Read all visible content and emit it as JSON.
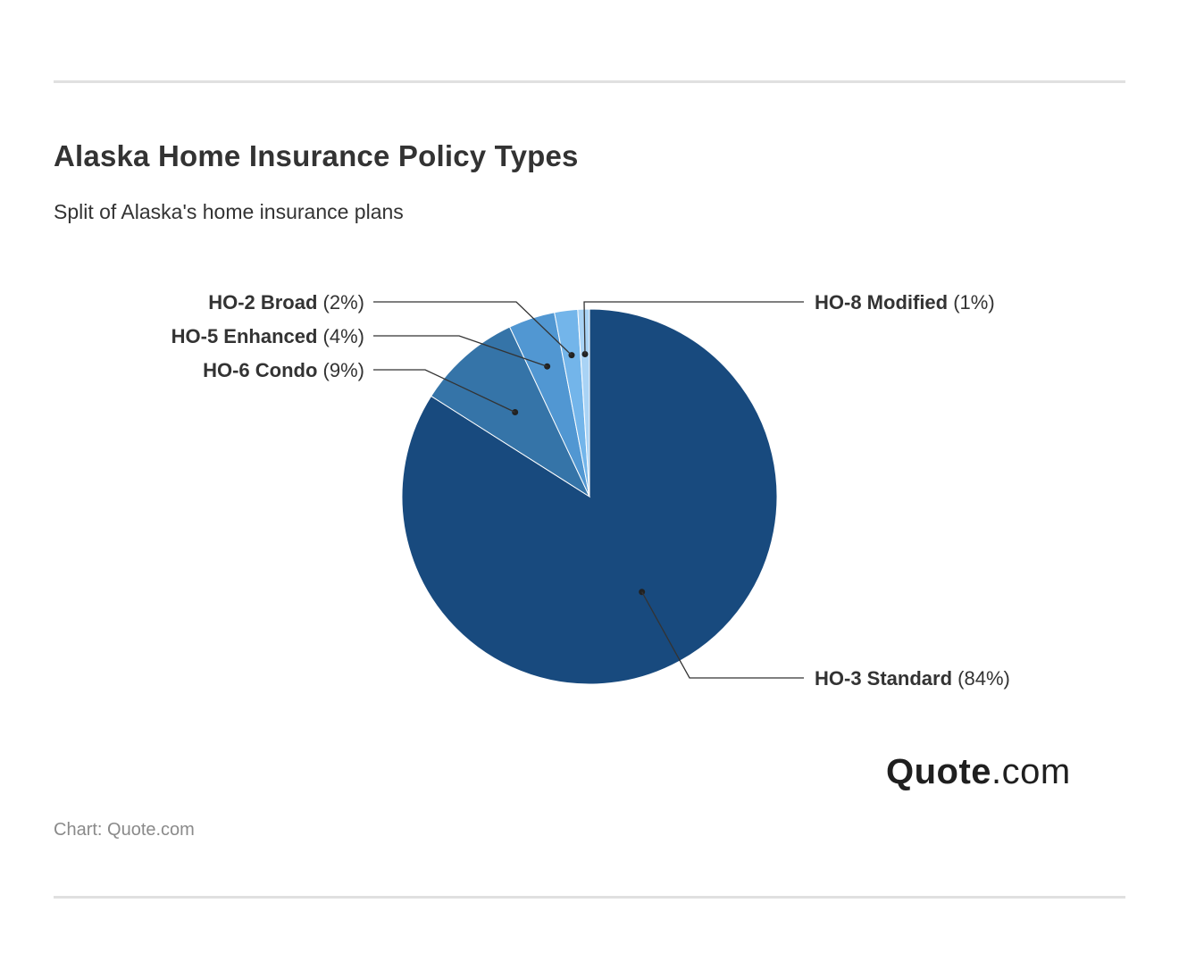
{
  "header": {
    "title": "Alaska Home Insurance Policy Types",
    "subtitle": "Split of Alaska's home insurance plans"
  },
  "footer": {
    "source": "Chart: Quote.com",
    "logo_bold": "Quote",
    "logo_rest": ".com"
  },
  "chart_data": {
    "type": "pie",
    "title": "Alaska Home Insurance Policy Types",
    "subtitle": "Split of Alaska's home insurance plans",
    "slices": [
      {
        "name": "HO-3 Standard",
        "value": 84,
        "label_value": "(84%)",
        "color": "#184a7e"
      },
      {
        "name": "HO-6 Condo",
        "value": 9,
        "label_value": "(9%)",
        "color": "#3574a8"
      },
      {
        "name": "HO-5 Enhanced",
        "value": 4,
        "label_value": "(4%)",
        "color": "#5197d2"
      },
      {
        "name": "HO-2 Broad",
        "value": 2,
        "label_value": "(2%)",
        "color": "#73b5ea"
      },
      {
        "name": "HO-8 Modified",
        "value": 1,
        "label_value": "(1%)",
        "color": "#a9d3f5"
      }
    ]
  }
}
